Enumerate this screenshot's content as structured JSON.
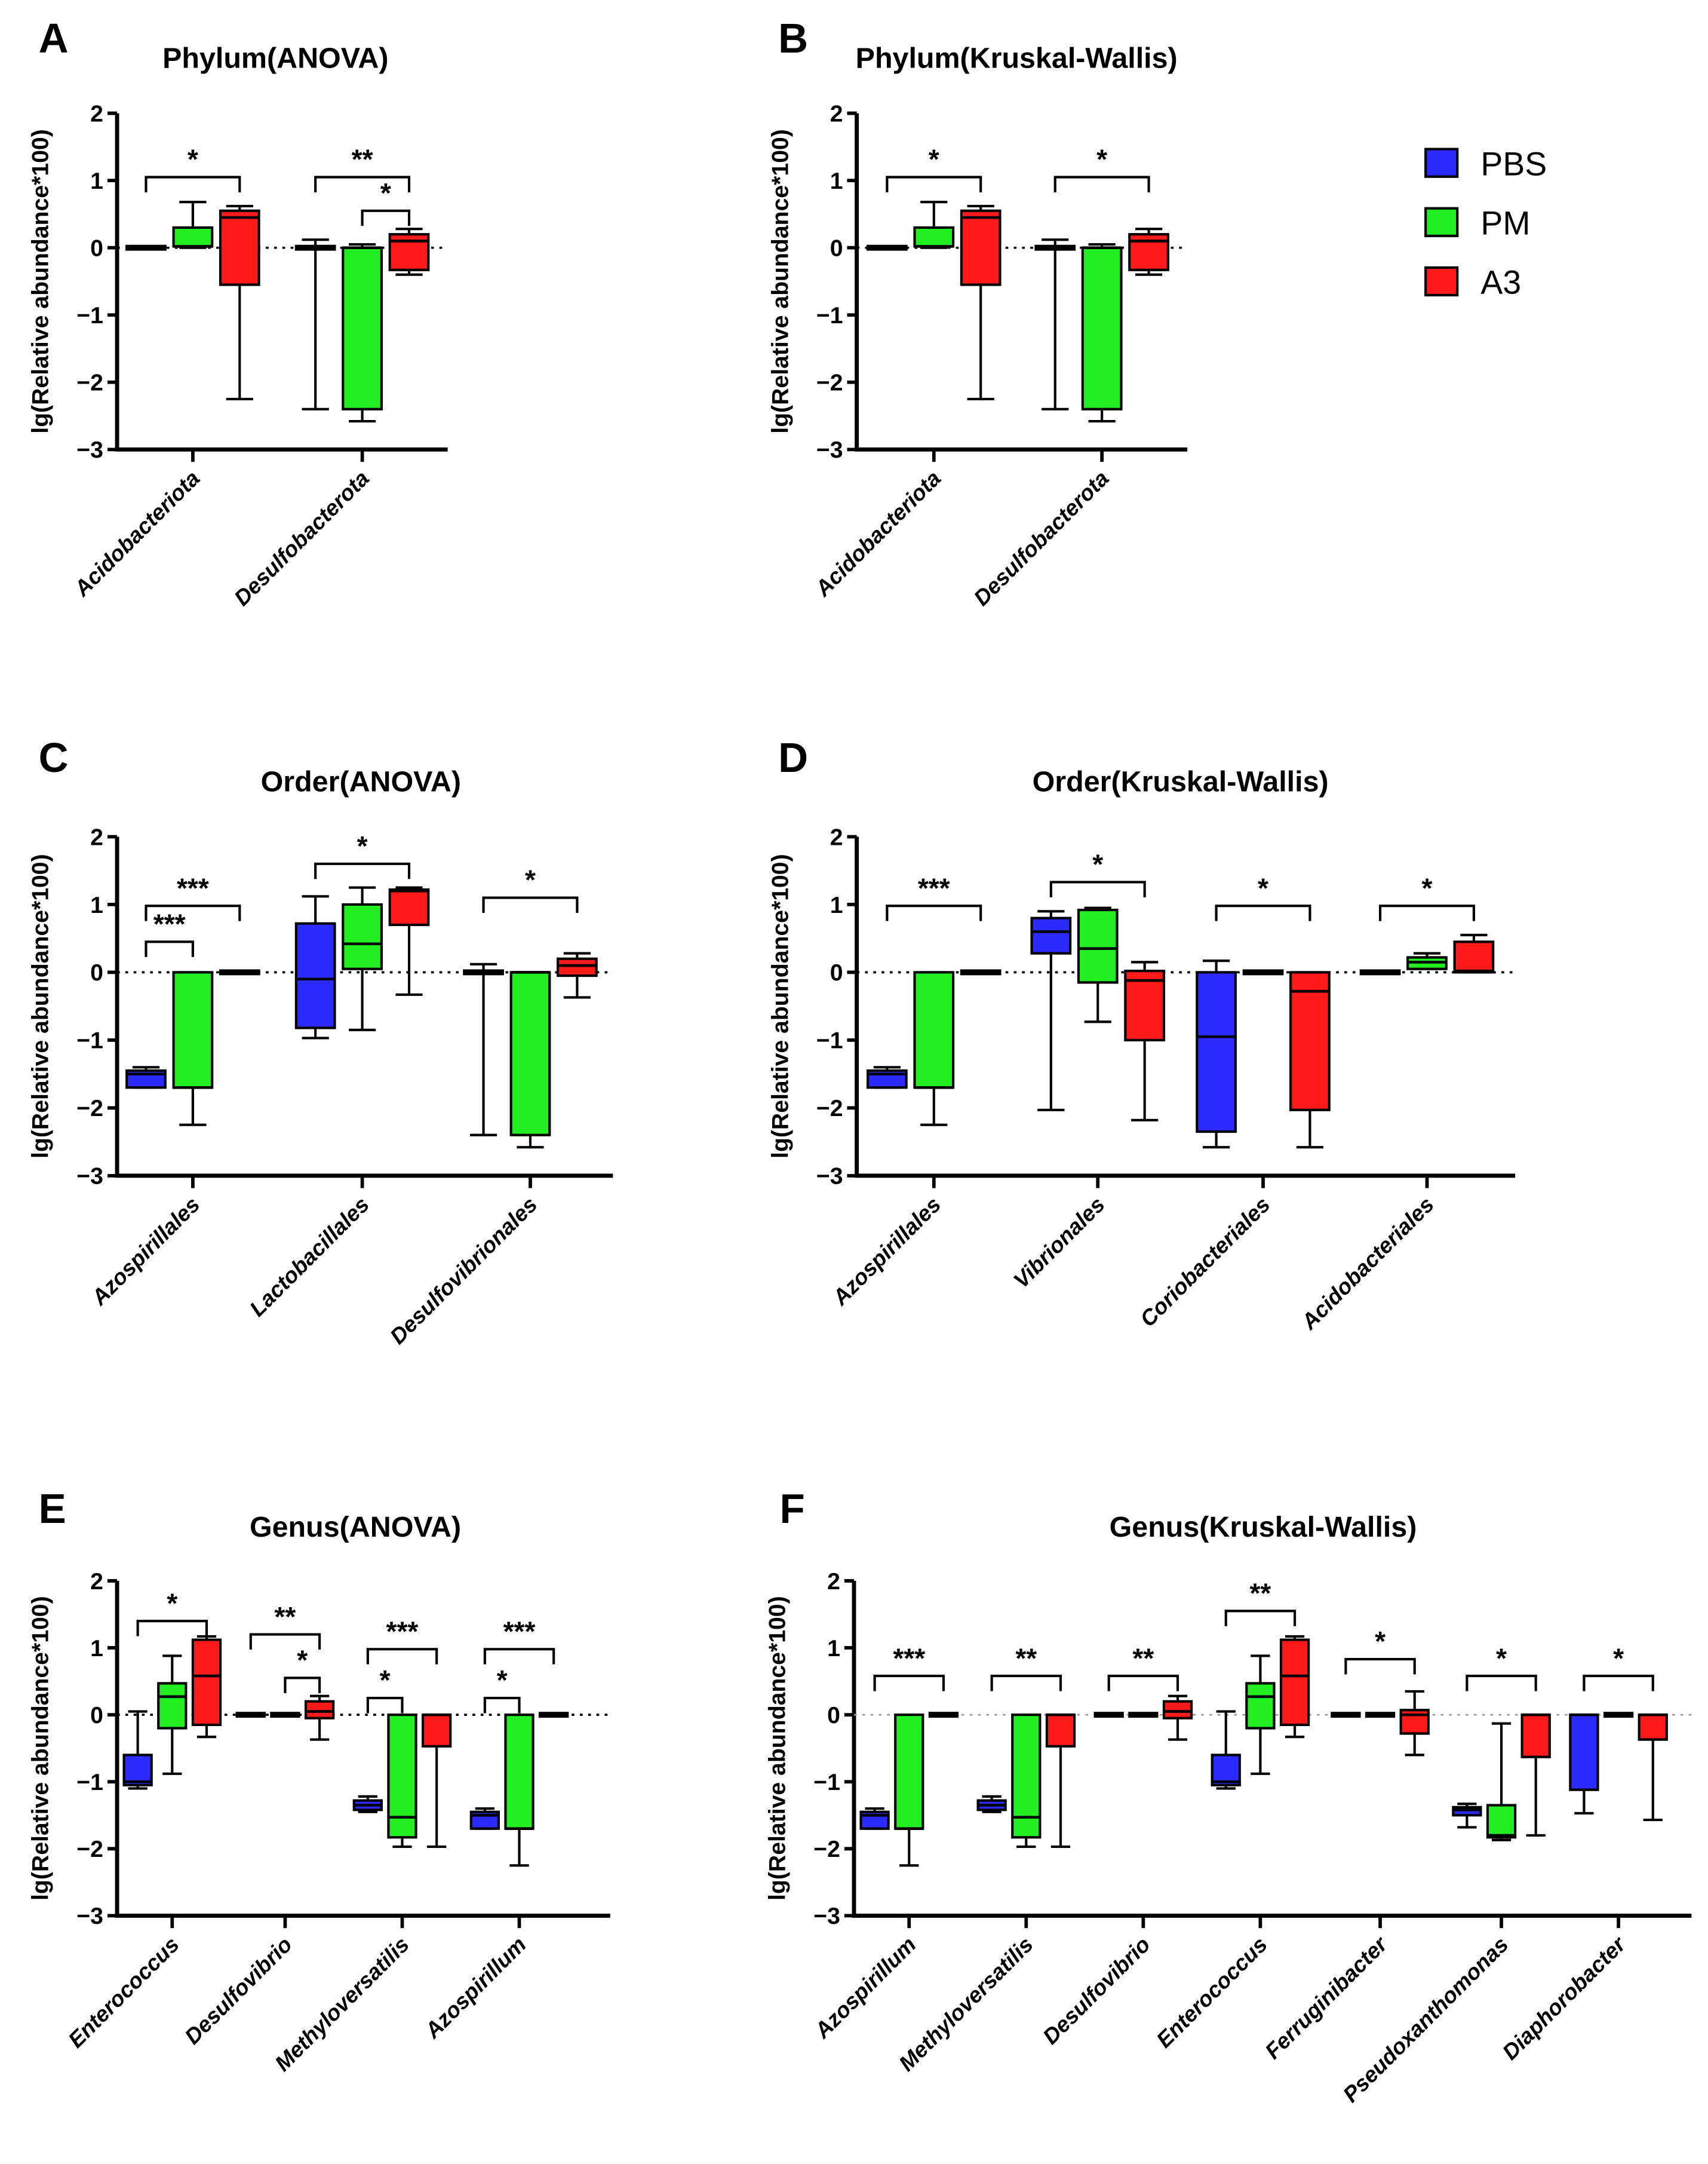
{
  "legend": {
    "items": [
      {
        "name": "PBS",
        "color": "#2b2bff"
      },
      {
        "name": "PM",
        "color": "#22ee22"
      },
      {
        "name": "A3",
        "color": "#ff1a1a"
      }
    ]
  },
  "chart_data": [
    {
      "letter": "A",
      "type": "box",
      "title": "Phylum(ANOVA)",
      "ylabel": "lg(Relative abundance*100)",
      "ylim": [
        -3,
        2
      ],
      "yticks": [
        "2",
        "1",
        "0",
        "−1",
        "−2",
        "−3"
      ],
      "ytick_values": [
        2,
        1,
        0,
        -1,
        -2,
        -3
      ],
      "categories": [
        "Acidobacteriota",
        "Desulfobacterota"
      ],
      "series": [
        {
          "name": "PBS",
          "boxes": [
            [
              0,
              0,
              0,
              0,
              0
            ],
            [
              -2.4,
              0,
              0,
              0,
              0.12
            ]
          ]
        },
        {
          "name": "PM",
          "boxes": [
            [
              0,
              0.02,
              0.02,
              0.3,
              0.68
            ],
            [
              -2.58,
              -2.4,
              0,
              0,
              0.05
            ]
          ]
        },
        {
          "name": "A3",
          "boxes": [
            [
              -2.25,
              -0.55,
              0.45,
              0.55,
              0.62
            ],
            [
              -0.4,
              -0.33,
              0.1,
              0.2,
              0.28
            ]
          ]
        }
      ],
      "significance": [
        {
          "category": 0,
          "from": 0,
          "to": 2,
          "y": 1.05,
          "label": "*"
        },
        {
          "category": 1,
          "from": 0,
          "to": 2,
          "y": 1.05,
          "label": "**"
        },
        {
          "category": 1,
          "from": 1,
          "to": 2,
          "y": 0.55,
          "label": "*"
        }
      ]
    },
    {
      "letter": "B",
      "type": "box",
      "title": "Phylum(Kruskal-Wallis)",
      "ylabel": "lg(Relative abundance*100)",
      "ylim": [
        -3,
        2
      ],
      "yticks": [
        "2",
        "1",
        "0",
        "−1",
        "−2",
        "−3"
      ],
      "ytick_values": [
        2,
        1,
        0,
        -1,
        -2,
        -3
      ],
      "categories": [
        "Acidobacteriota",
        "Desulfobacterota"
      ],
      "series": [
        {
          "name": "PBS",
          "boxes": [
            [
              0,
              0,
              0,
              0,
              0
            ],
            [
              -2.4,
              0,
              0,
              0,
              0.12
            ]
          ]
        },
        {
          "name": "PM",
          "boxes": [
            [
              0,
              0.02,
              0.02,
              0.3,
              0.68
            ],
            [
              -2.58,
              -2.4,
              0,
              0,
              0.05
            ]
          ]
        },
        {
          "name": "A3",
          "boxes": [
            [
              -2.25,
              -0.55,
              0.45,
              0.55,
              0.62
            ],
            [
              -0.4,
              -0.33,
              0.1,
              0.2,
              0.28
            ]
          ]
        }
      ],
      "significance": [
        {
          "category": 0,
          "from": 0,
          "to": 2,
          "y": 1.05,
          "label": "*"
        },
        {
          "category": 1,
          "from": 0,
          "to": 2,
          "y": 1.05,
          "label": "*"
        }
      ]
    },
    {
      "letter": "C",
      "type": "box",
      "title": "Order(ANOVA)",
      "ylabel": "lg(Relative abundance*100)",
      "ylim": [
        -3,
        2
      ],
      "yticks": [
        "2",
        "1",
        "0",
        "−1",
        "−2",
        "−3"
      ],
      "ytick_values": [
        2,
        1,
        0,
        -1,
        -2,
        -3
      ],
      "categories": [
        "Azospirillales",
        "Lactobacillales",
        "Desulfovibrionales"
      ],
      "series": [
        {
          "name": "PBS",
          "boxes": [
            [
              -1.7,
              -1.7,
              -1.5,
              -1.45,
              -1.4
            ],
            [
              -0.97,
              -0.82,
              -0.1,
              0.72,
              1.12
            ],
            [
              -2.4,
              0,
              0,
              0,
              0.12
            ]
          ]
        },
        {
          "name": "PM",
          "boxes": [
            [
              -2.25,
              -1.7,
              -1.7,
              0,
              0
            ],
            [
              -0.85,
              0.05,
              0.42,
              1.0,
              1.25
            ],
            [
              -2.58,
              -2.4,
              0,
              0,
              0
            ]
          ]
        },
        {
          "name": "A3",
          "boxes": [
            [
              0,
              0,
              0,
              0,
              0
            ],
            [
              -0.33,
              0.7,
              1.2,
              1.22,
              1.25
            ],
            [
              -0.37,
              -0.05,
              0.1,
              0.2,
              0.28
            ]
          ]
        }
      ],
      "significance": [
        {
          "category": 0,
          "from": 0,
          "to": 1,
          "y": 0.45,
          "label": "***"
        },
        {
          "category": 0,
          "from": 0,
          "to": 2,
          "y": 0.98,
          "label": "***"
        },
        {
          "category": 1,
          "from": 0,
          "to": 2,
          "y": 1.6,
          "label": "*"
        },
        {
          "category": 2,
          "from": 0,
          "to": 2,
          "y": 1.1,
          "label": "*"
        }
      ]
    },
    {
      "letter": "D",
      "type": "box",
      "title": "Order(Kruskal-Wallis)",
      "ylabel": "lg(Relative abundance*100)",
      "ylim": [
        -3,
        2
      ],
      "yticks": [
        "2",
        "1",
        "0",
        "−1",
        "−2",
        "−3"
      ],
      "ytick_values": [
        2,
        1,
        0,
        -1,
        -2,
        -3
      ],
      "categories": [
        "Azospirillales",
        "Vibrionales",
        "Coriobacteriales",
        "Acidobacteriales"
      ],
      "series": [
        {
          "name": "PBS",
          "boxes": [
            [
              -1.7,
              -1.7,
              -1.5,
              -1.45,
              -1.4
            ],
            [
              -2.03,
              0.28,
              0.6,
              0.8,
              0.9
            ],
            [
              -2.58,
              -2.35,
              -0.95,
              0,
              0.17
            ],
            [
              0,
              0,
              0,
              0,
              0
            ]
          ]
        },
        {
          "name": "PM",
          "boxes": [
            [
              -2.25,
              -1.7,
              -1.7,
              0,
              0
            ],
            [
              -0.73,
              -0.15,
              0.35,
              0.92,
              0.95
            ],
            [
              0,
              0,
              0,
              0,
              0
            ],
            [
              0.05,
              0.05,
              0.15,
              0.22,
              0.28
            ]
          ]
        },
        {
          "name": "A3",
          "boxes": [
            [
              0,
              0,
              0,
              0,
              0
            ],
            [
              -2.18,
              -1.0,
              -0.12,
              0.02,
              0.15
            ],
            [
              -2.58,
              -2.03,
              -0.28,
              0,
              0
            ],
            [
              0,
              0,
              0.02,
              0.45,
              0.55
            ]
          ]
        }
      ],
      "significance": [
        {
          "category": 0,
          "from": 0,
          "to": 2,
          "y": 0.98,
          "label": "***"
        },
        {
          "category": 1,
          "from": 0,
          "to": 2,
          "y": 1.33,
          "label": "*"
        },
        {
          "category": 2,
          "from": 0,
          "to": 2,
          "y": 0.98,
          "label": "*"
        },
        {
          "category": 3,
          "from": 0,
          "to": 2,
          "y": 0.98,
          "label": "*"
        }
      ]
    },
    {
      "letter": "E",
      "type": "box",
      "title": "Genus(ANOVA)",
      "ylabel": "lg(Relative abundance*100)",
      "ylim": [
        -3,
        2
      ],
      "yticks": [
        "2",
        "1",
        "0",
        "−1",
        "−2",
        "−3"
      ],
      "ytick_values": [
        2,
        1,
        0,
        -1,
        -2,
        -3
      ],
      "categories": [
        "Enterococcus",
        "Desulfovibrio",
        "Methyloversatilis",
        "Azospirillum"
      ],
      "series": [
        {
          "name": "PBS",
          "boxes": [
            [
              -1.1,
              -1.05,
              -1.0,
              -0.6,
              0.05
            ],
            [
              0,
              0,
              0,
              0,
              0
            ],
            [
              -1.45,
              -1.42,
              -1.35,
              -1.28,
              -1.22
            ],
            [
              -1.7,
              -1.7,
              -1.5,
              -1.45,
              -1.4
            ]
          ]
        },
        {
          "name": "PM",
          "boxes": [
            [
              -0.88,
              -0.2,
              0.27,
              0.47,
              0.88
            ],
            [
              0,
              0,
              0,
              0,
              0
            ],
            [
              -1.97,
              -1.83,
              -1.53,
              0,
              0
            ],
            [
              -2.25,
              -1.7,
              -1.7,
              0,
              0
            ]
          ]
        },
        {
          "name": "A3",
          "boxes": [
            [
              -0.33,
              -0.15,
              0.58,
              1.12,
              1.17
            ],
            [
              -0.37,
              -0.05,
              0.05,
              0.2,
              0.28
            ],
            [
              -1.97,
              -0.47,
              0,
              0,
              0
            ],
            [
              0,
              0,
              0,
              0,
              0
            ]
          ]
        }
      ],
      "significance": [
        {
          "category": 0,
          "from": 0,
          "to": 2,
          "y": 1.4,
          "label": "*"
        },
        {
          "category": 1,
          "from": 0,
          "to": 2,
          "y": 1.2,
          "label": "**"
        },
        {
          "category": 1,
          "from": 1,
          "to": 2,
          "y": 0.55,
          "label": "*"
        },
        {
          "category": 2,
          "from": 0,
          "to": 2,
          "y": 0.98,
          "label": "***"
        },
        {
          "category": 2,
          "from": 0,
          "to": 1,
          "y": 0.25,
          "label": "*"
        },
        {
          "category": 3,
          "from": 0,
          "to": 2,
          "y": 0.98,
          "label": "***"
        },
        {
          "category": 3,
          "from": 0,
          "to": 1,
          "y": 0.25,
          "label": "*"
        }
      ]
    },
    {
      "letter": "F",
      "type": "box",
      "title": "Genus(Kruskal-Wallis)",
      "ylabel": "lg(Relative abundance*100)",
      "ylim": [
        -3,
        2
      ],
      "yticks": [
        "2",
        "1",
        "0",
        "−1",
        "−2",
        "−3"
      ],
      "ytick_values": [
        2,
        1,
        0,
        -1,
        -2,
        -3
      ],
      "categories": [
        "Azospirillum",
        "Methyloversatilis",
        "Desulfovibrio",
        "Enterococcus",
        "Ferruginibacter",
        "Pseudoxanthomonas",
        "Diaphorobacter"
      ],
      "series": [
        {
          "name": "PBS",
          "boxes": [
            [
              -1.7,
              -1.7,
              -1.5,
              -1.45,
              -1.4
            ],
            [
              -1.45,
              -1.42,
              -1.35,
              -1.28,
              -1.22
            ],
            [
              0,
              0,
              0,
              0,
              0
            ],
            [
              -1.1,
              -1.05,
              -1.0,
              -0.6,
              0.05
            ],
            [
              0,
              0,
              0,
              0,
              0
            ],
            [
              -1.68,
              -1.5,
              -1.42,
              -1.38,
              -1.33
            ],
            [
              -1.47,
              -1.12,
              0,
              0,
              0
            ]
          ]
        },
        {
          "name": "PM",
          "boxes": [
            [
              -2.25,
              -1.7,
              -1.7,
              0,
              0
            ],
            [
              -1.97,
              -1.83,
              -1.53,
              0,
              0
            ],
            [
              0,
              0,
              0,
              0,
              0
            ],
            [
              -0.88,
              -0.2,
              0.27,
              0.47,
              0.88
            ],
            [
              0,
              0,
              0,
              0,
              0
            ],
            [
              -1.87,
              -1.83,
              -1.8,
              -1.35,
              -0.13
            ],
            [
              0,
              0,
              0,
              0,
              0
            ]
          ]
        },
        {
          "name": "A3",
          "boxes": [
            [
              0,
              0,
              0,
              0,
              0
            ],
            [
              -1.97,
              -0.47,
              0,
              0,
              0
            ],
            [
              -0.37,
              -0.05,
              0.05,
              0.2,
              0.28
            ],
            [
              -0.33,
              -0.15,
              0.58,
              1.12,
              1.17
            ],
            [
              -0.6,
              -0.28,
              0,
              0.07,
              0.35
            ],
            [
              -1.8,
              -0.63,
              0,
              0,
              0
            ],
            [
              -1.57,
              -0.37,
              0,
              0,
              0
            ]
          ]
        }
      ],
      "significance": [
        {
          "category": 0,
          "from": 0,
          "to": 2,
          "y": 0.58,
          "label": "***"
        },
        {
          "category": 1,
          "from": 0,
          "to": 2,
          "y": 0.58,
          "label": "**"
        },
        {
          "category": 2,
          "from": 0,
          "to": 2,
          "y": 0.58,
          "label": "**"
        },
        {
          "category": 3,
          "from": 0,
          "to": 2,
          "y": 1.55,
          "label": "**"
        },
        {
          "category": 4,
          "from": 0,
          "to": 2,
          "y": 0.83,
          "label": "*"
        },
        {
          "category": 5,
          "from": 0,
          "to": 2,
          "y": 0.58,
          "label": "*"
        },
        {
          "category": 6,
          "from": 0,
          "to": 2,
          "y": 0.58,
          "label": "*"
        }
      ]
    }
  ]
}
